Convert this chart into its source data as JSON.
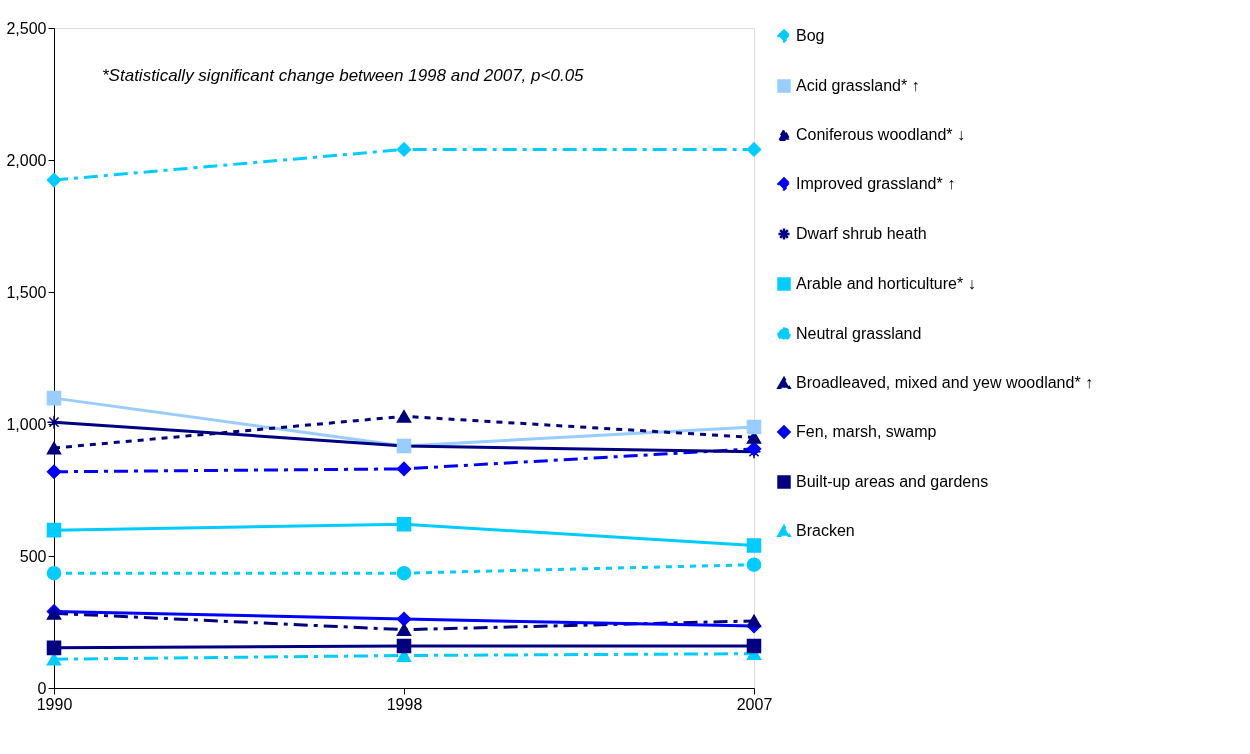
{
  "chart_data": {
    "type": "line",
    "categories": [
      "1990",
      "1998",
      "2007"
    ],
    "ylim": [
      0,
      2500
    ],
    "yticks": [
      0,
      500,
      {
        "value": 1000,
        "label": "1,000"
      },
      {
        "value": 1500,
        "label": "1,500"
      },
      {
        "value": 2000,
        "label": "2,000"
      },
      {
        "value": 2500,
        "label": "2,500"
      }
    ],
    "grid": false,
    "legend": "right",
    "annotations": [
      "*Statistically significant change between 1998 and 2007, p<0.05"
    ],
    "series": [
      {
        "name": "Bog",
        "color": "#00ccff",
        "marker": "diamond",
        "line_style": "dashed",
        "values": [
          1924,
          2040,
          2040
        ]
      },
      {
        "name": "Acid grassland* ↑",
        "color": "#99ccff",
        "marker": "square",
        "line_style": "solid",
        "values": [
          1098,
          917,
          989
        ]
      },
      {
        "name": "Coniferous woodland* ↓",
        "color": "#000080",
        "marker": "triangle",
        "line_style": "dotted",
        "values": [
          909,
          1029,
          949
        ]
      },
      {
        "name": "Improved grassland* ↑",
        "color": "#0000ff",
        "marker": "diamond",
        "line_style": "dashed",
        "values": [
          819,
          830,
          906
        ]
      },
      {
        "name": "Dwarf shrub heath",
        "color": "#000080",
        "marker": "cross",
        "line_style": "solid",
        "values": [
          1007,
          917,
          895
        ]
      },
      {
        "name": "Arable and horticulture* ↓",
        "color": "#00ccff",
        "marker": "square",
        "line_style": "solid",
        "values": [
          598,
          620,
          540
        ]
      },
      {
        "name": "Neutral grassland",
        "color": "#00ccff",
        "marker": "circle",
        "line_style": "dotted",
        "values": [
          435,
          435,
          467
        ]
      },
      {
        "name": "Broadleaved, mixed and yew woodland* ↑",
        "color": "#000080",
        "marker": "triangle",
        "line_style": "dashed",
        "values": [
          283,
          221,
          254
        ]
      },
      {
        "name": "Fen, marsh, swamp",
        "color": "#0000ff",
        "marker": "diamond",
        "line_style": "solid",
        "values": [
          290,
          261,
          235
        ]
      },
      {
        "name": "Built-up areas and gardens",
        "color": "#000080",
        "marker": "square",
        "line_style": "solid",
        "values": [
          152,
          159,
          159
        ]
      },
      {
        "name": "Bracken",
        "color": "#00ccff",
        "marker": "triangle",
        "line_style": "dashed",
        "values": [
          109,
          123,
          130
        ]
      }
    ]
  }
}
